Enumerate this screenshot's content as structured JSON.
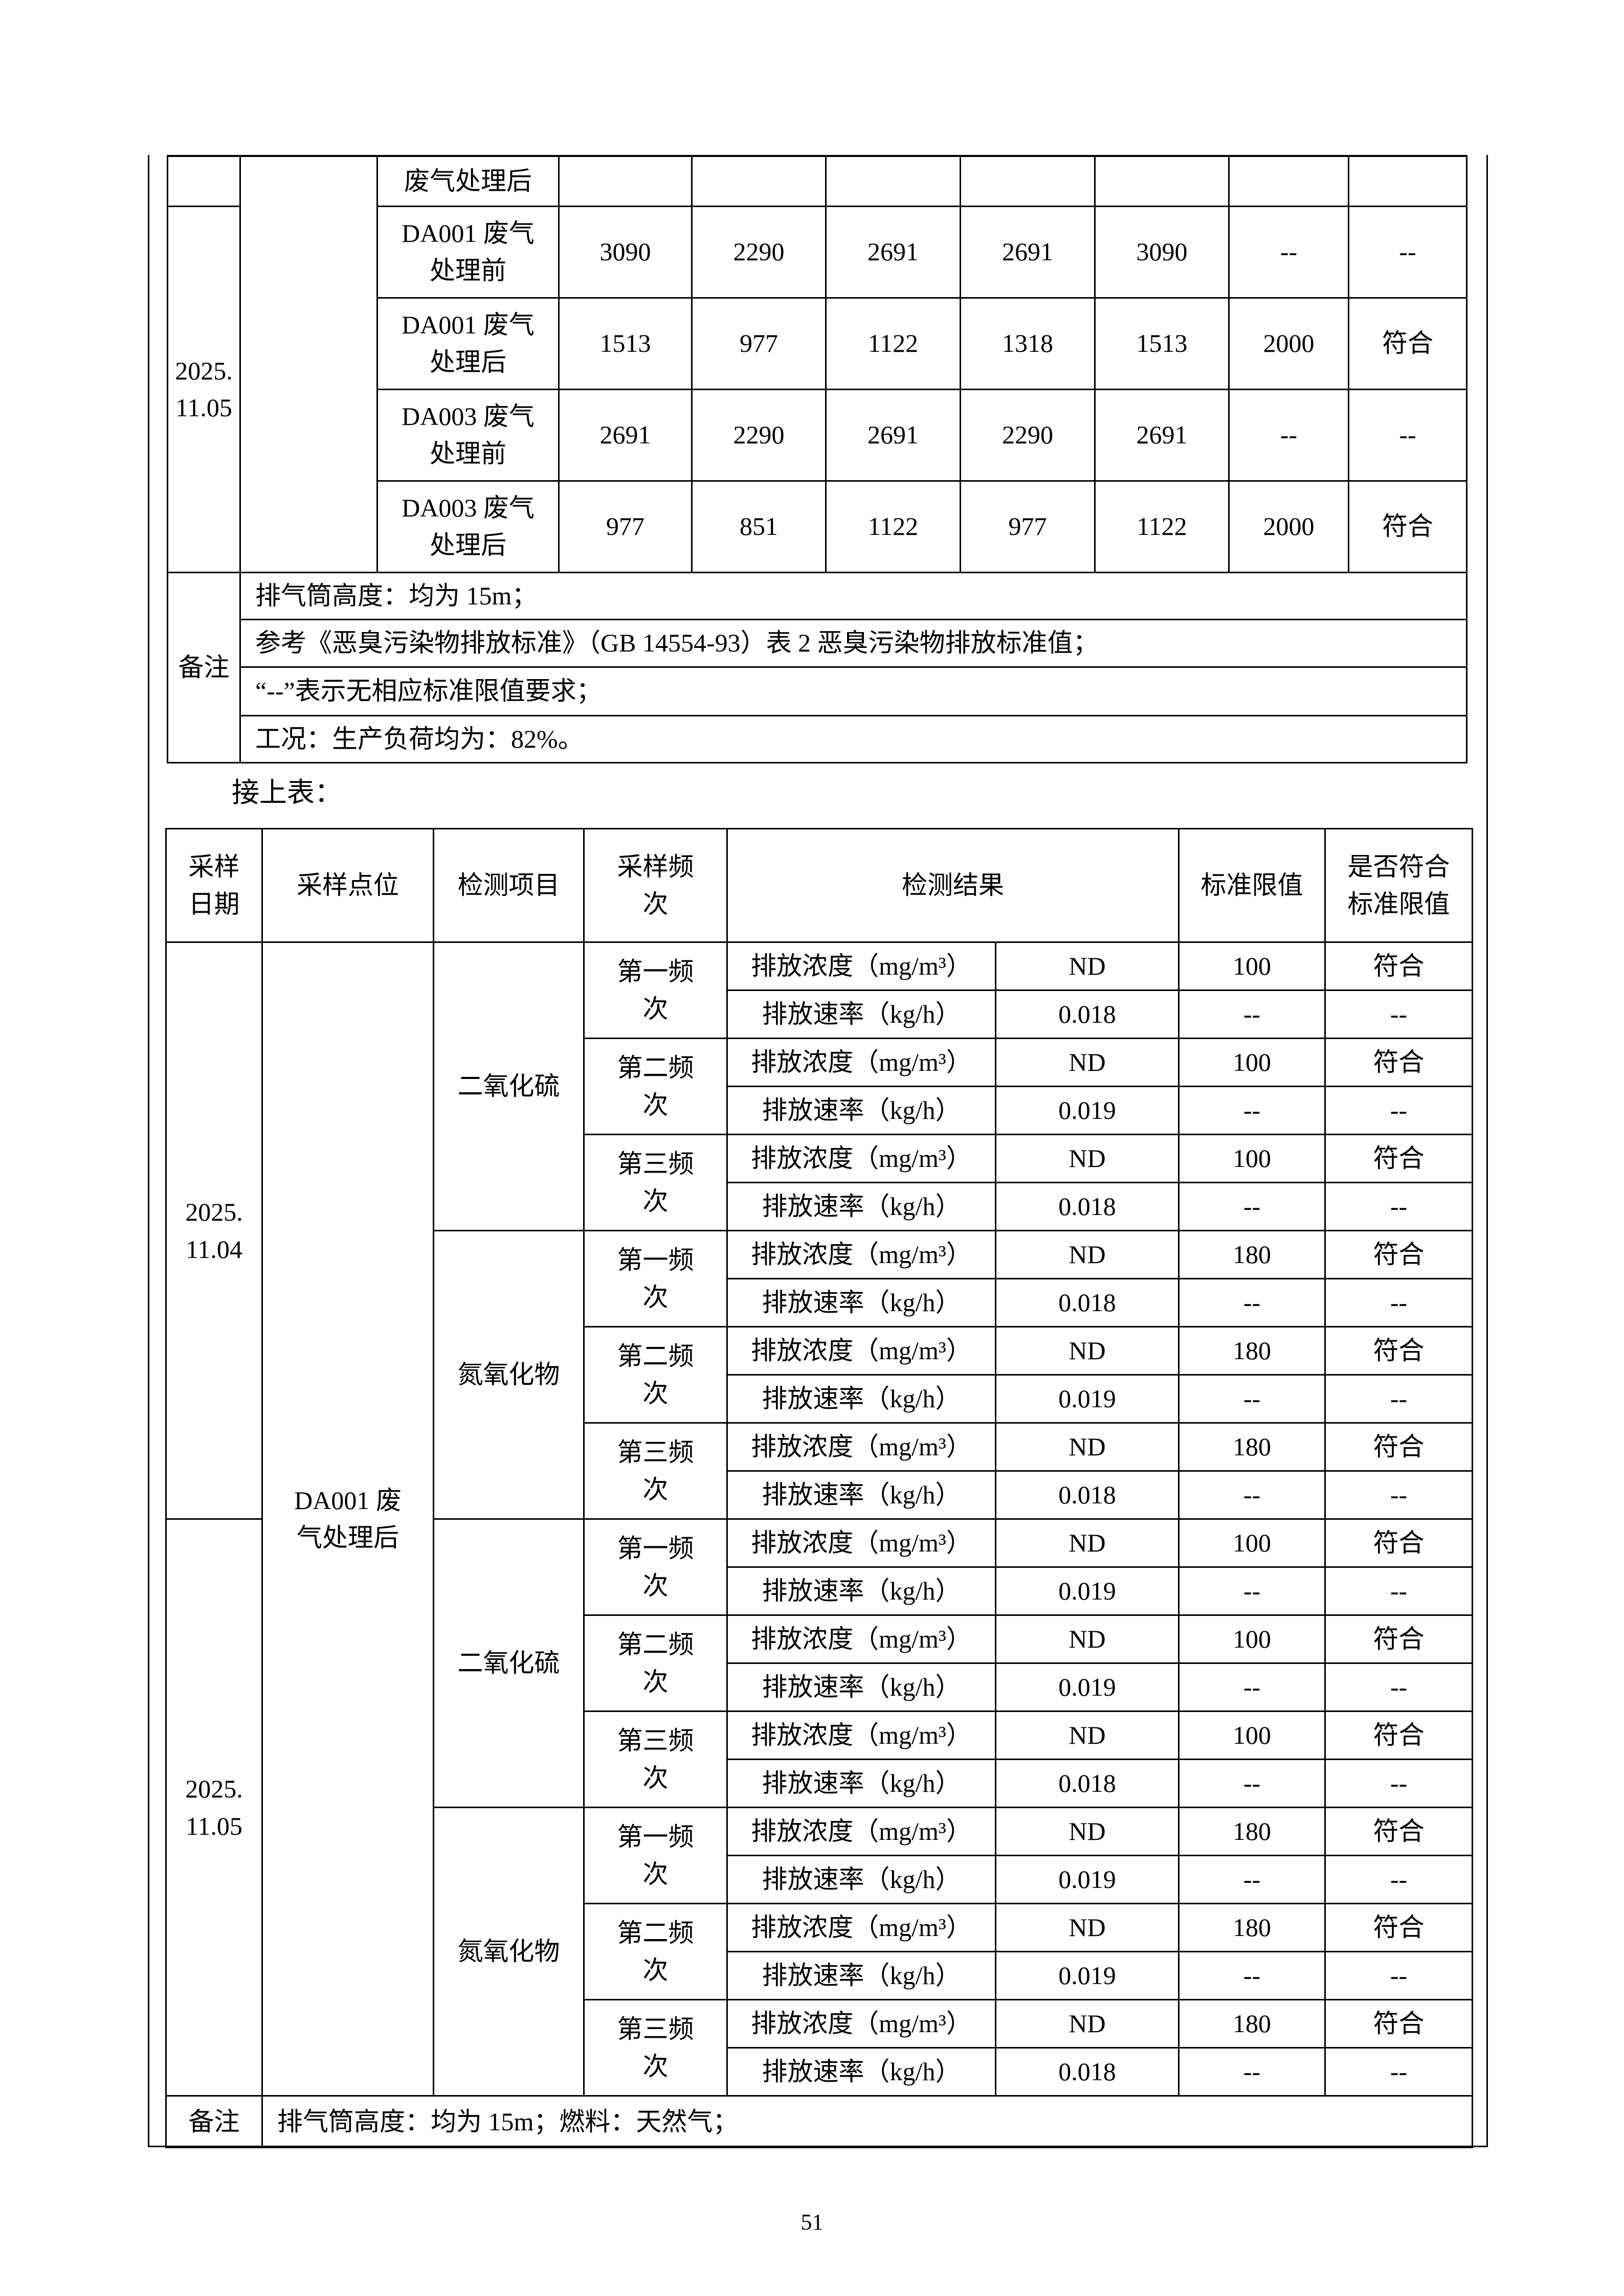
{
  "table1": {
    "first_row_location": "废气处理后",
    "date": "2025.11.05",
    "rows": [
      {
        "location": "DA001 废气处理前",
        "values": [
          "3090",
          "2290",
          "2691",
          "2691",
          "3090"
        ],
        "limit": "--",
        "ok": "--"
      },
      {
        "location": "DA001 废气处理后",
        "values": [
          "1513",
          "977",
          "1122",
          "1318",
          "1513"
        ],
        "limit": "2000",
        "ok": "符合"
      },
      {
        "location": "DA003 废气处理前",
        "values": [
          "2691",
          "2290",
          "2691",
          "2290",
          "2691"
        ],
        "limit": "--",
        "ok": "--"
      },
      {
        "location": "DA003 废气处理后",
        "values": [
          "977",
          "851",
          "1122",
          "977",
          "1122"
        ],
        "limit": "2000",
        "ok": "符合"
      }
    ],
    "remark_label": "备注",
    "remarks": [
      "排气筒高度：均为 15m；",
      "参考《恶臭污染物排放标准》（GB 14554-93）表 2 恶臭污染物排放标准值；",
      "“--”表示无相应标准限值要求；",
      "工况：生产负荷均为：82%。"
    ]
  },
  "continued_label": "接上表：",
  "table2": {
    "headers": {
      "date": "采样日期",
      "location": "采样点位",
      "item": "检测项目",
      "freq": "采样频次",
      "result": "检测结果",
      "limit": "标准限值",
      "ok": "是否符合标准限值"
    },
    "location": "DA001 废气处理后",
    "dates": [
      {
        "date": "2025.11.04",
        "items": [
          {
            "name": "二氧化硫",
            "freqs": [
              {
                "label": "第一频次",
                "rows": [
                  {
                    "metric": "排放浓度（mg/m³）",
                    "value": "ND",
                    "limit": "100",
                    "ok": "符合"
                  },
                  {
                    "metric": "排放速率（kg/h）",
                    "value": "0.018",
                    "limit": "--",
                    "ok": "--"
                  }
                ]
              },
              {
                "label": "第二频次",
                "rows": [
                  {
                    "metric": "排放浓度（mg/m³）",
                    "value": "ND",
                    "limit": "100",
                    "ok": "符合"
                  },
                  {
                    "metric": "排放速率（kg/h）",
                    "value": "0.019",
                    "limit": "--",
                    "ok": "--"
                  }
                ]
              },
              {
                "label": "第三频次",
                "rows": [
                  {
                    "metric": "排放浓度（mg/m³）",
                    "value": "ND",
                    "limit": "100",
                    "ok": "符合"
                  },
                  {
                    "metric": "排放速率（kg/h）",
                    "value": "0.018",
                    "limit": "--",
                    "ok": "--"
                  }
                ]
              }
            ]
          },
          {
            "name": "氮氧化物",
            "freqs": [
              {
                "label": "第一频次",
                "rows": [
                  {
                    "metric": "排放浓度（mg/m³）",
                    "value": "ND",
                    "limit": "180",
                    "ok": "符合"
                  },
                  {
                    "metric": "排放速率（kg/h）",
                    "value": "0.018",
                    "limit": "--",
                    "ok": "--"
                  }
                ]
              },
              {
                "label": "第二频次",
                "rows": [
                  {
                    "metric": "排放浓度（mg/m³）",
                    "value": "ND",
                    "limit": "180",
                    "ok": "符合"
                  },
                  {
                    "metric": "排放速率（kg/h）",
                    "value": "0.019",
                    "limit": "--",
                    "ok": "--"
                  }
                ]
              },
              {
                "label": "第三频次",
                "rows": [
                  {
                    "metric": "排放浓度（mg/m³）",
                    "value": "ND",
                    "limit": "180",
                    "ok": "符合"
                  },
                  {
                    "metric": "排放速率（kg/h）",
                    "value": "0.018",
                    "limit": "--",
                    "ok": "--"
                  }
                ]
              }
            ]
          }
        ]
      },
      {
        "date": "2025.11.05",
        "items": [
          {
            "name": "二氧化硫",
            "freqs": [
              {
                "label": "第一频次",
                "rows": [
                  {
                    "metric": "排放浓度（mg/m³）",
                    "value": "ND",
                    "limit": "100",
                    "ok": "符合"
                  },
                  {
                    "metric": "排放速率（kg/h）",
                    "value": "0.019",
                    "limit": "--",
                    "ok": "--"
                  }
                ]
              },
              {
                "label": "第二频次",
                "rows": [
                  {
                    "metric": "排放浓度（mg/m³）",
                    "value": "ND",
                    "limit": "100",
                    "ok": "符合"
                  },
                  {
                    "metric": "排放速率（kg/h）",
                    "value": "0.019",
                    "limit": "--",
                    "ok": "--"
                  }
                ]
              },
              {
                "label": "第三频次",
                "rows": [
                  {
                    "metric": "排放浓度（mg/m³）",
                    "value": "ND",
                    "limit": "100",
                    "ok": "符合"
                  },
                  {
                    "metric": "排放速率（kg/h）",
                    "value": "0.018",
                    "limit": "--",
                    "ok": "--"
                  }
                ]
              }
            ]
          },
          {
            "name": "氮氧化物",
            "freqs": [
              {
                "label": "第一频次",
                "rows": [
                  {
                    "metric": "排放浓度（mg/m³）",
                    "value": "ND",
                    "limit": "180",
                    "ok": "符合"
                  },
                  {
                    "metric": "排放速率（kg/h）",
                    "value": "0.019",
                    "limit": "--",
                    "ok": "--"
                  }
                ]
              },
              {
                "label": "第二频次",
                "rows": [
                  {
                    "metric": "排放浓度（mg/m³）",
                    "value": "ND",
                    "limit": "180",
                    "ok": "符合"
                  },
                  {
                    "metric": "排放速率（kg/h）",
                    "value": "0.019",
                    "limit": "--",
                    "ok": "--"
                  }
                ]
              },
              {
                "label": "第三频次",
                "rows": [
                  {
                    "metric": "排放浓度（mg/m³）",
                    "value": "ND",
                    "limit": "180",
                    "ok": "符合"
                  },
                  {
                    "metric": "排放速率（kg/h）",
                    "value": "0.018",
                    "limit": "--",
                    "ok": "--"
                  }
                ]
              }
            ]
          }
        ]
      }
    ],
    "remark_label": "备注",
    "remark": "排气筒高度：均为 15m；燃料：天然气；"
  },
  "page_number": "51"
}
